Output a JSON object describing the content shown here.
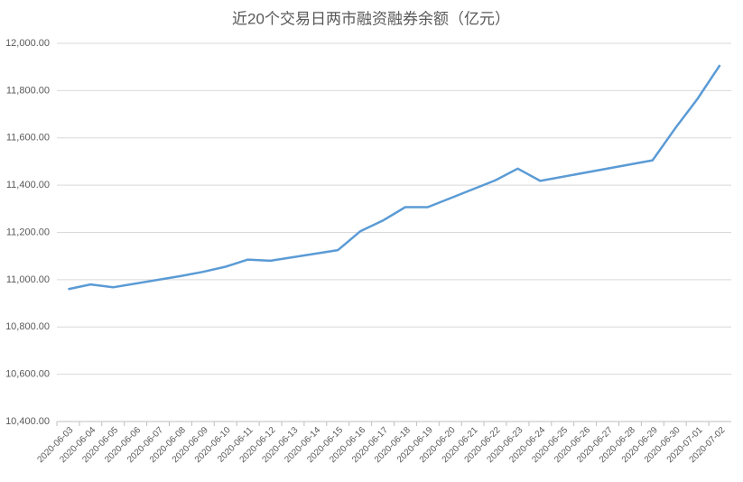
{
  "chart_data": {
    "type": "line",
    "title": "近20个交易日两市融资融券余额（亿元）",
    "x": [
      "2020-06-03",
      "2020-06-04",
      "2020-06-05",
      "2020-06-08",
      "2020-06-09",
      "2020-06-10",
      "2020-06-11",
      "2020-06-12",
      "2020-06-15",
      "2020-06-16",
      "2020-06-17",
      "2020-06-18",
      "2020-06-19",
      "2020-06-22",
      "2020-06-23",
      "2020-06-24",
      "2020-06-29",
      "2020-06-30",
      "2020-07-01",
      "2020-07-02"
    ],
    "values": [
      10960,
      10980,
      10968,
      11015,
      11033,
      11055,
      11085,
      11080,
      11125,
      11205,
      11250,
      11307,
      11307,
      11420,
      11470,
      11418,
      11505,
      11640,
      11765,
      11908
    ],
    "color": "#5b9bd5",
    "xticks": [
      "2020-06-03",
      "2020-06-04",
      "2020-06-05",
      "2020-06-06",
      "2020-06-07",
      "2020-06-08",
      "2020-06-09",
      "2020-06-10",
      "2020-06-11",
      "2020-06-12",
      "2020-06-13",
      "2020-06-14",
      "2020-06-15",
      "2020-06-16",
      "2020-06-17",
      "2020-06-18",
      "2020-06-19",
      "2020-06-20",
      "2020-06-21",
      "2020-06-22",
      "2020-06-23",
      "2020-06-24",
      "2020-06-25",
      "2020-06-26",
      "2020-06-27",
      "2020-06-28",
      "2020-06-29",
      "2020-06-30",
      "2020-07-01",
      "2020-07-02"
    ],
    "ylim": [
      10400,
      12000
    ],
    "yticks": [
      {
        "value": 10400,
        "label": "10,400.00"
      },
      {
        "value": 10600,
        "label": "10,600.00"
      },
      {
        "value": 10800,
        "label": "10,800.00"
      },
      {
        "value": 11000,
        "label": "11,000.00"
      },
      {
        "value": 11200,
        "label": "11,200.00"
      },
      {
        "value": 11400,
        "label": "11,400.00"
      },
      {
        "value": 11600,
        "label": "11,600.00"
      },
      {
        "value": 11800,
        "label": "11,800.00"
      },
      {
        "value": 12000,
        "label": "12,000.00"
      }
    ],
    "grid": true
  }
}
